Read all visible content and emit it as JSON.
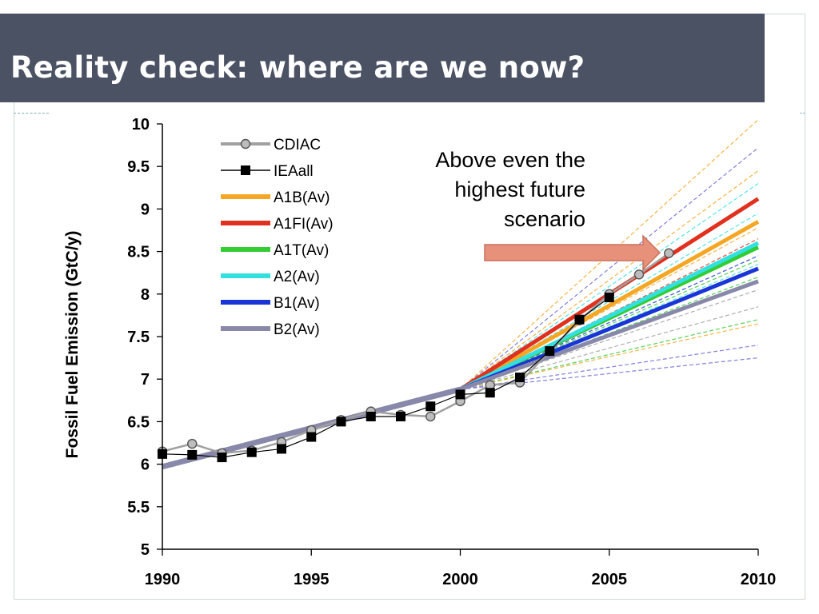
{
  "slide": {
    "title": "Reality check: where are we now?"
  },
  "callout": {
    "lines": [
      "Above even the",
      "highest future",
      "scenario"
    ],
    "arrow_color": "#e8917a",
    "arrow_border": "#c9705a"
  },
  "chart_data": {
    "type": "line",
    "title": "",
    "xlabel": "",
    "ylabel": "Fossil Fuel Emission (GtC/y)",
    "xlim": [
      1990,
      2010
    ],
    "ylim": [
      5,
      10
    ],
    "x_ticks": [
      "1990",
      "1995",
      "2000",
      "2005",
      "2010"
    ],
    "y_ticks": [
      "5",
      "5.5",
      "6",
      "6.5",
      "7",
      "7.5",
      "8",
      "8.5",
      "9",
      "9.5",
      "10"
    ],
    "grid": false,
    "legend_position": "top-left",
    "series": [
      {
        "name": "CDIAC",
        "color": "#a0a0a0",
        "marker": "circle",
        "kind": "observed",
        "x": [
          1990,
          1991,
          1992,
          1993,
          1994,
          1995,
          1996,
          1997,
          1998,
          1999,
          2000,
          2001,
          2002,
          2003,
          2004,
          2005,
          2006,
          2007
        ],
        "y": [
          6.15,
          6.24,
          6.13,
          6.16,
          6.26,
          6.4,
          6.52,
          6.62,
          6.58,
          6.56,
          6.74,
          6.93,
          6.96,
          7.33,
          7.69,
          8.0,
          8.23,
          8.48
        ]
      },
      {
        "name": "IEAall",
        "color": "#000000",
        "marker": "square",
        "kind": "observed",
        "x": [
          1990,
          1991,
          1992,
          1993,
          1994,
          1995,
          1996,
          1997,
          1998,
          1999,
          2000,
          2001,
          2002,
          2003,
          2004,
          2005
        ],
        "y": [
          6.12,
          6.11,
          6.08,
          6.14,
          6.18,
          6.32,
          6.5,
          6.56,
          6.56,
          6.68,
          6.82,
          6.84,
          7.02,
          7.33,
          7.7,
          7.96
        ]
      },
      {
        "name": "A1B(Av)",
        "color": "#f5a623",
        "kind": "scenario",
        "x": [
          2000,
          2010
        ],
        "y": [
          6.88,
          8.85
        ]
      },
      {
        "name": "A1FI(Av)",
        "color": "#e0301e",
        "kind": "scenario",
        "x": [
          2000,
          2010
        ],
        "y": [
          6.88,
          9.12
        ]
      },
      {
        "name": "A1T(Av)",
        "color": "#33cc33",
        "kind": "scenario",
        "x": [
          2000,
          2010
        ],
        "y": [
          6.88,
          8.55
        ]
      },
      {
        "name": "A2(Av)",
        "color": "#33e0e0",
        "kind": "scenario",
        "x": [
          2000,
          2010
        ],
        "y": [
          6.88,
          8.6
        ]
      },
      {
        "name": "B1(Av)",
        "color": "#1a35d6",
        "kind": "scenario",
        "x": [
          2000,
          2010
        ],
        "y": [
          6.88,
          8.3
        ]
      },
      {
        "name": "B2(Av)",
        "color": "#8888aa",
        "kind": "scenario",
        "x": [
          2000,
          2010
        ],
        "y": [
          6.88,
          8.15
        ]
      }
    ],
    "historic_band": {
      "color": "#8888aa",
      "x": [
        1990,
        2000
      ],
      "y": [
        5.97,
        6.88
      ]
    },
    "individual_scenarios": [
      {
        "color": "#f5a623",
        "x": [
          2000,
          2010
        ],
        "y": [
          6.88,
          10.05
        ]
      },
      {
        "color": "#f5a623",
        "x": [
          2000,
          2010
        ],
        "y": [
          6.88,
          9.45
        ]
      },
      {
        "color": "#e0301e",
        "x": [
          2000,
          2010
        ],
        "y": [
          6.88,
          8.65
        ]
      },
      {
        "color": "#6a6ad6",
        "x": [
          2000,
          2010
        ],
        "y": [
          6.88,
          9.72
        ]
      },
      {
        "color": "#33e0e0",
        "x": [
          2000,
          2010
        ],
        "y": [
          6.88,
          9.3
        ]
      },
      {
        "color": "#33e0e0",
        "x": [
          2000,
          2010
        ],
        "y": [
          6.88,
          8.95
        ]
      },
      {
        "color": "#f5a623",
        "x": [
          2000,
          2010
        ],
        "y": [
          6.88,
          8.78
        ]
      },
      {
        "color": "#33cc33",
        "x": [
          2000,
          2010
        ],
        "y": [
          6.88,
          8.4
        ]
      },
      {
        "color": "#33cc33",
        "x": [
          2000,
          2010
        ],
        "y": [
          6.88,
          8.2
        ]
      },
      {
        "color": "#1a35d6",
        "x": [
          2000,
          2010
        ],
        "y": [
          6.88,
          8.45
        ]
      },
      {
        "color": "#33e0e0",
        "x": [
          2000,
          2010
        ],
        "y": [
          6.88,
          8.35
        ]
      },
      {
        "color": "#a0a0a0",
        "x": [
          2000,
          2010
        ],
        "y": [
          6.88,
          8.05
        ]
      },
      {
        "color": "#a0a0a0",
        "x": [
          2000,
          2010
        ],
        "y": [
          6.88,
          7.85
        ]
      },
      {
        "color": "#33cc33",
        "x": [
          2000,
          2010
        ],
        "y": [
          6.88,
          7.7
        ]
      },
      {
        "color": "#f5a623",
        "x": [
          2000,
          2010
        ],
        "y": [
          6.88,
          7.65
        ]
      },
      {
        "color": "#6a6ad6",
        "x": [
          2000,
          2010
        ],
        "y": [
          6.88,
          7.4
        ]
      },
      {
        "color": "#6a6ad6",
        "x": [
          2000,
          2010
        ],
        "y": [
          6.88,
          7.25
        ]
      }
    ]
  }
}
